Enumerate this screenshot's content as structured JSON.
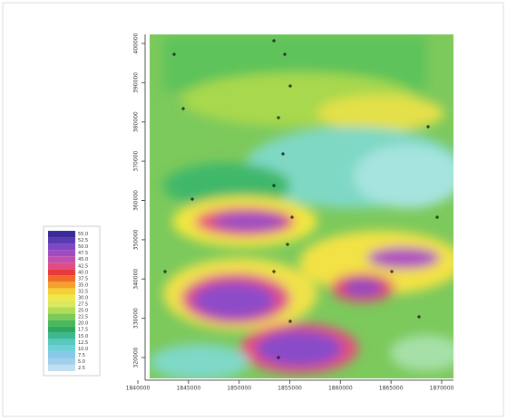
{
  "axes": {
    "y_labels": [
      "400000",
      "390000",
      "380000",
      "370000",
      "360000",
      "350000",
      "340000",
      "330000",
      "320000"
    ],
    "x_labels": [
      "1840000",
      "1845000",
      "1850000",
      "1855000",
      "1860000",
      "1865000",
      "1870000"
    ]
  },
  "legend": {
    "levels": [
      "55.0",
      "52.5",
      "50.0",
      "47.5",
      "45.0",
      "42.5",
      "40.0",
      "37.5",
      "35.0",
      "32.5",
      "30.0",
      "27.5",
      "25.0",
      "22.5",
      "20.0",
      "17.5",
      "15.0",
      "12.5",
      "10.0",
      "7.5",
      "5.0",
      "2.5"
    ]
  }
}
